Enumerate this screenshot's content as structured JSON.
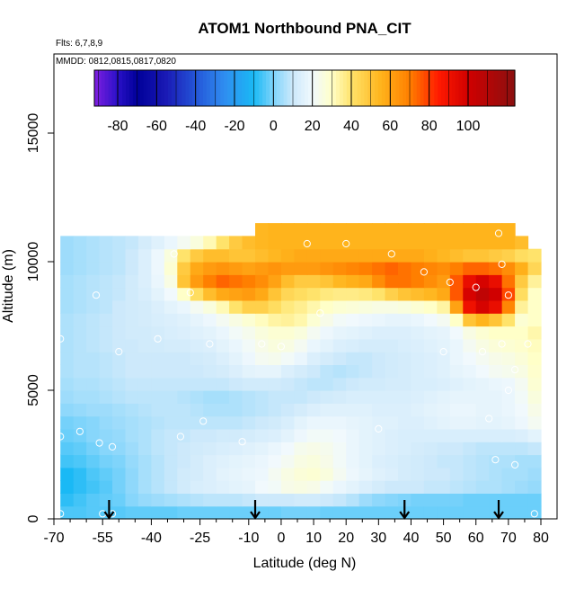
{
  "chart_data": {
    "type": "heatmap",
    "title": "ATOM1 Northbound PNA_CIT",
    "flights_note": "Flts: 6,7,8,9",
    "dates_note": "MMDD: 0812,0815,0817,0820",
    "xlabel": "Latitude (deg N)",
    "ylabel": "Altitude (m)",
    "xlim": [
      -70,
      85
    ],
    "ylim": [
      0,
      18000
    ],
    "xticks_major": [
      -70,
      -55,
      -40,
      -25,
      -10,
      0,
      10,
      20,
      30,
      40,
      50,
      60,
      70,
      80
    ],
    "xticks_minor": [
      -65,
      -60,
      -50,
      -45,
      -35,
      -30,
      -20,
      -15,
      -5,
      5,
      15,
      25,
      35,
      45,
      55,
      65,
      75
    ],
    "yticks": [
      0,
      5000,
      10000,
      15000
    ],
    "colorbar": {
      "range": [
        -92,
        124
      ],
      "ticks": [
        -80,
        -60,
        -40,
        -20,
        0,
        20,
        40,
        60,
        80,
        100
      ],
      "stops": [
        {
          "v": -92,
          "c": "#7f1fe0"
        },
        {
          "v": -80,
          "c": "#2a10c8"
        },
        {
          "v": -70,
          "c": "#000099"
        },
        {
          "v": -55,
          "c": "#1a1ab5"
        },
        {
          "v": -40,
          "c": "#2455d8"
        },
        {
          "v": -25,
          "c": "#2f8ef0"
        },
        {
          "v": -10,
          "c": "#1ab9f5"
        },
        {
          "v": 0,
          "c": "#7fd4fb"
        },
        {
          "v": 10,
          "c": "#cde9fb"
        },
        {
          "v": 20,
          "c": "#f1f9fd"
        },
        {
          "v": 30,
          "c": "#ffffc8"
        },
        {
          "v": 40,
          "c": "#ffe36b"
        },
        {
          "v": 55,
          "c": "#ffb41c"
        },
        {
          "v": 70,
          "c": "#ff7f00"
        },
        {
          "v": 85,
          "c": "#ff1a00"
        },
        {
          "v": 100,
          "c": "#d00000"
        },
        {
          "v": 124,
          "c": "#8b1010"
        }
      ]
    },
    "field": {
      "lat_start": -68,
      "lat_step": 4,
      "alt_start": 0,
      "alt_step": 500,
      "ncols": 38,
      "nrows": 23,
      "max_alt_by_col": [
        11000,
        11000,
        11000,
        11000,
        11000,
        11000,
        11000,
        11000,
        11000,
        11000,
        11000,
        11000,
        11000,
        11000,
        11000,
        11500,
        11500,
        11500,
        11500,
        11500,
        11500,
        11500,
        11500,
        11500,
        11500,
        11500,
        11500,
        11500,
        11500,
        11500,
        11500,
        11500,
        11500,
        11500,
        11500,
        11000,
        10500,
        8000
      ],
      "values": [
        [
          -5,
          -5,
          -4,
          -4,
          -4,
          -3,
          -3,
          -3,
          -3,
          -2,
          -2,
          -2,
          -2,
          -2,
          -2,
          -2,
          -2,
          -1,
          -1,
          -1,
          -2,
          -2,
          -2,
          -2,
          -2,
          -2,
          -2,
          -2,
          -2,
          -2,
          -2,
          -2,
          -2,
          -2,
          -2,
          -2,
          -2,
          -3
        ],
        [
          -8,
          -6,
          -4,
          -3,
          -2,
          1,
          3,
          4,
          5,
          6,
          7,
          8,
          8,
          8,
          9,
          10,
          10,
          10,
          11,
          11,
          10,
          9,
          7,
          4,
          2,
          1,
          0,
          -1,
          -1,
          -1,
          -1,
          -2,
          -2,
          -2,
          -2,
          -2,
          -2,
          -3
        ],
        [
          -10,
          -8,
          -6,
          -4,
          -1,
          2,
          5,
          7,
          9,
          11,
          13,
          14,
          15,
          16,
          17,
          20,
          21,
          24,
          25,
          24,
          21,
          18,
          16,
          14,
          12,
          10,
          10,
          10,
          9,
          9,
          8,
          7,
          6,
          6,
          5,
          4,
          3,
          1
        ],
        [
          -10,
          -8,
          -5,
          -3,
          -1,
          2,
          5,
          7,
          9,
          11,
          12,
          14,
          16,
          17,
          18,
          19,
          22,
          25,
          27,
          28,
          26,
          22,
          19,
          17,
          15,
          14,
          12,
          11,
          10,
          10,
          9,
          8,
          7,
          6,
          5,
          5,
          4,
          2
        ],
        [
          -6,
          -5,
          -3,
          -1,
          0,
          3,
          5,
          7,
          9,
          10,
          12,
          14,
          15,
          16,
          17,
          18,
          20,
          22,
          25,
          26,
          24,
          21,
          18,
          16,
          14,
          13,
          12,
          11,
          10,
          9,
          9,
          8,
          7,
          6,
          6,
          5,
          5,
          4
        ],
        [
          -4,
          -3,
          -1,
          1,
          2,
          4,
          6,
          8,
          9,
          10,
          11,
          12,
          13,
          14,
          15,
          16,
          18,
          20,
          23,
          24,
          23,
          21,
          18,
          16,
          15,
          14,
          13,
          12,
          11,
          10,
          10,
          9,
          8,
          8,
          8,
          8,
          9,
          10
        ],
        [
          -2,
          -1,
          1,
          2,
          3,
          5,
          6,
          8,
          9,
          9,
          10,
          10,
          11,
          11,
          12,
          13,
          14,
          16,
          19,
          21,
          21,
          20,
          18,
          16,
          15,
          14,
          13,
          13,
          13,
          13,
          13,
          13,
          13,
          13,
          13,
          14,
          16,
          19
        ],
        [
          -1,
          0,
          1,
          3,
          4,
          5,
          6,
          7,
          8,
          8,
          8,
          8,
          8,
          8,
          9,
          10,
          11,
          13,
          16,
          18,
          18,
          18,
          17,
          16,
          15,
          15,
          14,
          14,
          15,
          16,
          17,
          17,
          16,
          16,
          17,
          19,
          22,
          25
        ],
        [
          2,
          3,
          4,
          4,
          5,
          6,
          7,
          8,
          8,
          8,
          7,
          6,
          6,
          6,
          7,
          8,
          9,
          10,
          12,
          14,
          15,
          15,
          15,
          15,
          14,
          14,
          14,
          15,
          16,
          17,
          18,
          18,
          17,
          17,
          18,
          20,
          24,
          30
        ],
        [
          4,
          5,
          5,
          6,
          7,
          8,
          8,
          8,
          8,
          7,
          6,
          5,
          5,
          6,
          7,
          8,
          9,
          9,
          9,
          10,
          11,
          12,
          13,
          13,
          13,
          13,
          13,
          14,
          15,
          16,
          17,
          17,
          17,
          17,
          18,
          21,
          26,
          33
        ],
        [
          5,
          6,
          6,
          7,
          8,
          9,
          9,
          9,
          9,
          9,
          9,
          9,
          9,
          10,
          11,
          11,
          11,
          10,
          9,
          8,
          8,
          9,
          10,
          11,
          11,
          12,
          12,
          13,
          13,
          14,
          15,
          16,
          17,
          18,
          19,
          22,
          28,
          35
        ],
        [
          6,
          7,
          7,
          8,
          9,
          10,
          10,
          10,
          10,
          10,
          10,
          11,
          12,
          14,
          16,
          17,
          17,
          14,
          12,
          10,
          8,
          7,
          8,
          9,
          10,
          11,
          12,
          13,
          14,
          15,
          17,
          18,
          20,
          22,
          23,
          25,
          29,
          36
        ],
        [
          6,
          7,
          7,
          8,
          9,
          10,
          10,
          10,
          10,
          10,
          11,
          12,
          14,
          16,
          19,
          22,
          23,
          21,
          18,
          14,
          12,
          10,
          9,
          9,
          10,
          11,
          12,
          13,
          14,
          15,
          18,
          20,
          22,
          24,
          25,
          27,
          30,
          36
        ],
        [
          6,
          7,
          8,
          9,
          10,
          10,
          11,
          11,
          12,
          12,
          13,
          14,
          16,
          18,
          21,
          24,
          26,
          25,
          22,
          18,
          16,
          14,
          13,
          12,
          12,
          12,
          13,
          14,
          15,
          16,
          18,
          22,
          25,
          27,
          28,
          29,
          31,
          37
        ],
        [
          6,
          7,
          8,
          9,
          10,
          11,
          11,
          12,
          13,
          14,
          15,
          16,
          18,
          21,
          23,
          26,
          28,
          28,
          26,
          22,
          19,
          17,
          16,
          15,
          14,
          14,
          14,
          15,
          16,
          17,
          20,
          25,
          28,
          30,
          30,
          30,
          33,
          38
        ],
        [
          6,
          7,
          8,
          9,
          10,
          11,
          12,
          13,
          14,
          15,
          17,
          19,
          22,
          25,
          28,
          31,
          34,
          35,
          33,
          28,
          24,
          21,
          20,
          19,
          18,
          17,
          17,
          18,
          20,
          22,
          30,
          50,
          55,
          50,
          40,
          28,
          30,
          40
        ],
        [
          5,
          6,
          7,
          8,
          10,
          11,
          12,
          14,
          16,
          18,
          22,
          26,
          32,
          40,
          46,
          46,
          42,
          38,
          36,
          33,
          30,
          28,
          27,
          26,
          25,
          25,
          26,
          28,
          30,
          34,
          60,
          90,
          98,
          92,
          68,
          35,
          30,
          42
        ],
        [
          5,
          6,
          7,
          8,
          9,
          11,
          13,
          16,
          20,
          30,
          42,
          52,
          58,
          60,
          62,
          58,
          50,
          44,
          42,
          40,
          38,
          37,
          37,
          38,
          40,
          46,
          50,
          52,
          54,
          58,
          76,
          98,
          106,
          100,
          78,
          42,
          30,
          40
        ],
        [
          5,
          6,
          7,
          8,
          9,
          11,
          14,
          18,
          25,
          50,
          62,
          70,
          74,
          72,
          70,
          66,
          60,
          52,
          48,
          48,
          50,
          54,
          56,
          58,
          66,
          72,
          72,
          70,
          66,
          62,
          76,
          92,
          98,
          92,
          72,
          48,
          35,
          40
        ],
        [
          4,
          5,
          6,
          7,
          8,
          10,
          14,
          19,
          28,
          48,
          58,
          62,
          64,
          62,
          60,
          62,
          64,
          62,
          62,
          62,
          64,
          66,
          68,
          70,
          72,
          74,
          72,
          70,
          68,
          66,
          70,
          74,
          74,
          72,
          66,
          56,
          44,
          40
        ],
        [
          4,
          5,
          6,
          7,
          8,
          10,
          14,
          19,
          26,
          40,
          48,
          52,
          52,
          50,
          50,
          52,
          54,
          56,
          58,
          58,
          58,
          58,
          58,
          58,
          58,
          58,
          58,
          58,
          56,
          54,
          52,
          50,
          50,
          48,
          46,
          42,
          40,
          40
        ],
        [
          4,
          5,
          6,
          7,
          8,
          9,
          12,
          15,
          18,
          22,
          26,
          32,
          40,
          48,
          52,
          54,
          55,
          55,
          55,
          55,
          55,
          55,
          55,
          55,
          55,
          55,
          55,
          55,
          55,
          55,
          55,
          55,
          55,
          55,
          55,
          52,
          48,
          44
        ],
        [
          4,
          5,
          6,
          7,
          8,
          9,
          12,
          15,
          18,
          22,
          26,
          32,
          40,
          48,
          52,
          54,
          55,
          55,
          55,
          55,
          55,
          55,
          55,
          55,
          55,
          55,
          55,
          55,
          55,
          55,
          55,
          55,
          55,
          55,
          55,
          52,
          48,
          44
        ]
      ]
    },
    "sample_points": [
      [
        -68,
        7000
      ],
      [
        -68,
        3200
      ],
      [
        -68,
        200
      ],
      [
        -62,
        3400
      ],
      [
        -57,
        8700
      ],
      [
        -56,
        2950
      ],
      [
        -55,
        200
      ],
      [
        -52,
        2800
      ],
      [
        -50,
        6500
      ],
      [
        -52,
        200
      ],
      [
        -38,
        7000
      ],
      [
        -33,
        10300
      ],
      [
        -31,
        3200
      ],
      [
        -28,
        8800
      ],
      [
        -24,
        3800
      ],
      [
        -22,
        6800
      ],
      [
        -18,
        11200
      ],
      [
        -12,
        11300
      ],
      [
        -12,
        3000
      ],
      [
        -6,
        6800
      ],
      [
        0,
        6700
      ],
      [
        8,
        10700
      ],
      [
        12,
        8000
      ],
      [
        20,
        10700
      ],
      [
        30,
        3500
      ],
      [
        34,
        10300
      ],
      [
        44,
        9600
      ],
      [
        50,
        6500
      ],
      [
        52,
        9200
      ],
      [
        60,
        9000
      ],
      [
        62,
        6500
      ],
      [
        64,
        3900
      ],
      [
        66,
        2300
      ],
      [
        67,
        11100
      ],
      [
        68,
        6800
      ],
      [
        68,
        9900
      ],
      [
        70,
        8700
      ],
      [
        70,
        5000
      ],
      [
        72,
        5800
      ],
      [
        72,
        2100
      ],
      [
        76,
        6800
      ],
      [
        78,
        200
      ]
    ],
    "arrows_lat": [
      -53,
      -8,
      38,
      67
    ]
  }
}
